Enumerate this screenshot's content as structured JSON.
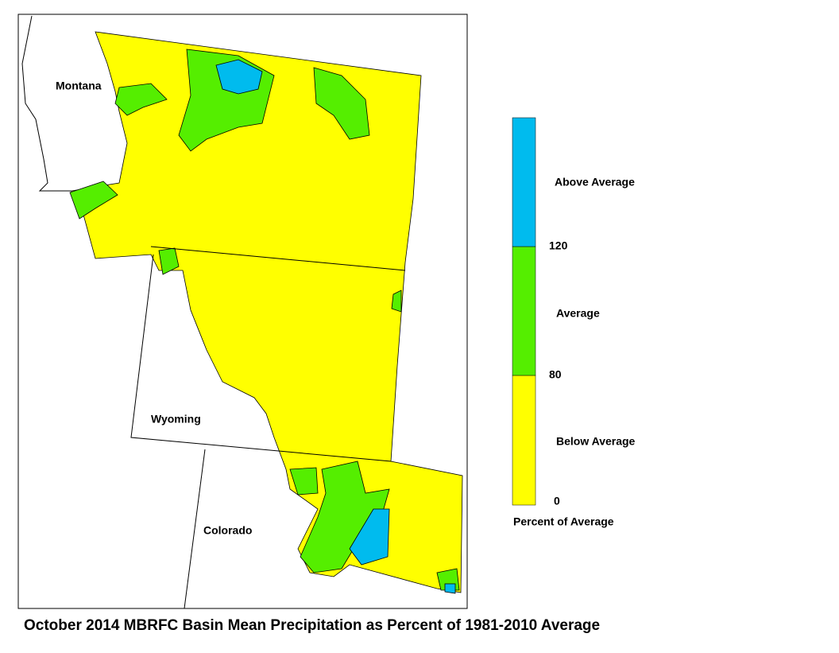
{
  "title": "October 2014 MBRFC Basin Mean Precipitation as Percent of 1981-2010 Average",
  "map": {
    "states": [
      "Montana",
      "Wyoming",
      "Colorado"
    ]
  },
  "legend": {
    "title": "Percent of Average",
    "ticks": [
      0,
      80,
      120
    ],
    "classes": [
      {
        "label": "Below Average",
        "color": "#ffff00"
      },
      {
        "label": "Average",
        "color": "#55ee00"
      },
      {
        "label": "Above Average",
        "color": "#00bbee"
      }
    ]
  }
}
